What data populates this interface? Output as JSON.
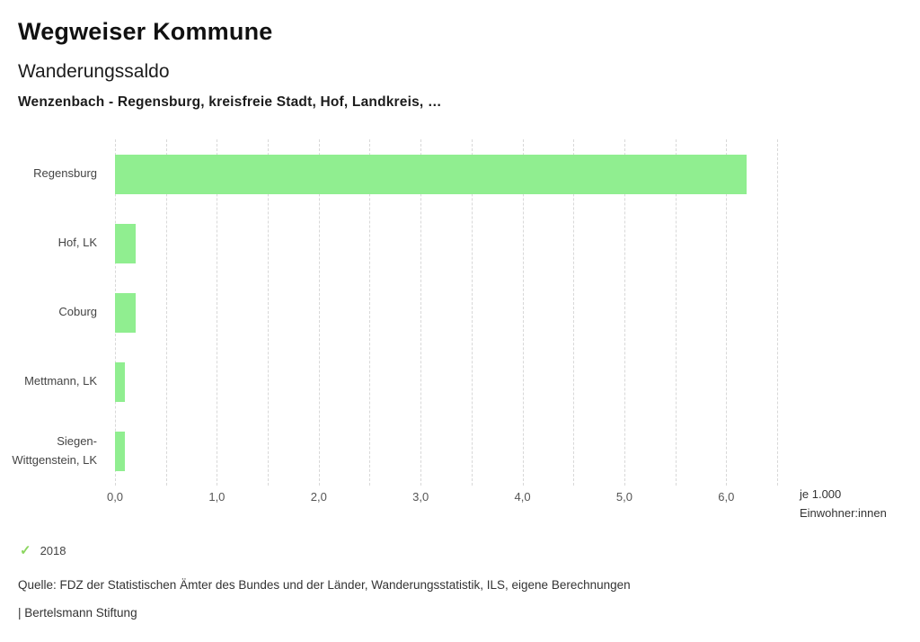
{
  "page": {
    "app_title": "Wegweiser Kommune",
    "chart_title": "Wanderungssaldo",
    "chart_subtitle": "Wenzenbach - Regensburg, kreisfreie Stadt, Hof, Landkreis, …",
    "source": "Quelle: FDZ der Statistischen Ämter des Bundes und der Länder, Wanderungsstatistik, ILS, eigene Berechnungen",
    "branding": "| Bertelsmann Stiftung"
  },
  "legend": {
    "year": "2018",
    "check_glyph": "✓",
    "check_color": "#8bd65f"
  },
  "axis_note": {
    "line1": "je 1.000",
    "line2": "Einwohner:innen"
  },
  "chart_data": {
    "type": "bar",
    "orientation": "horizontal",
    "title": "Wanderungssaldo",
    "subtitle": "Wenzenbach - Regensburg, kreisfreie Stadt, Hof, Landkreis, …",
    "series_name": "2018",
    "categories": [
      "Regensburg",
      "Hof, LK",
      "Coburg",
      "Mettmann, LK",
      "Siegen-Wittgenstein, LK"
    ],
    "values": [
      6.2,
      0.2,
      0.2,
      0.1,
      0.1
    ],
    "unit_label": "je 1.000 Einwohner:innen",
    "xlim": [
      0,
      6.5
    ],
    "xticks": [
      0,
      1,
      2,
      3,
      4,
      5,
      6
    ],
    "xtick_labels": [
      "0,0",
      "1,0",
      "2,0",
      "3,0",
      "4,0",
      "5,0",
      "6,0"
    ],
    "grid": true,
    "grid_step": 0.5,
    "bar_color": "#90ee90",
    "legend_position": "bottom-left"
  }
}
